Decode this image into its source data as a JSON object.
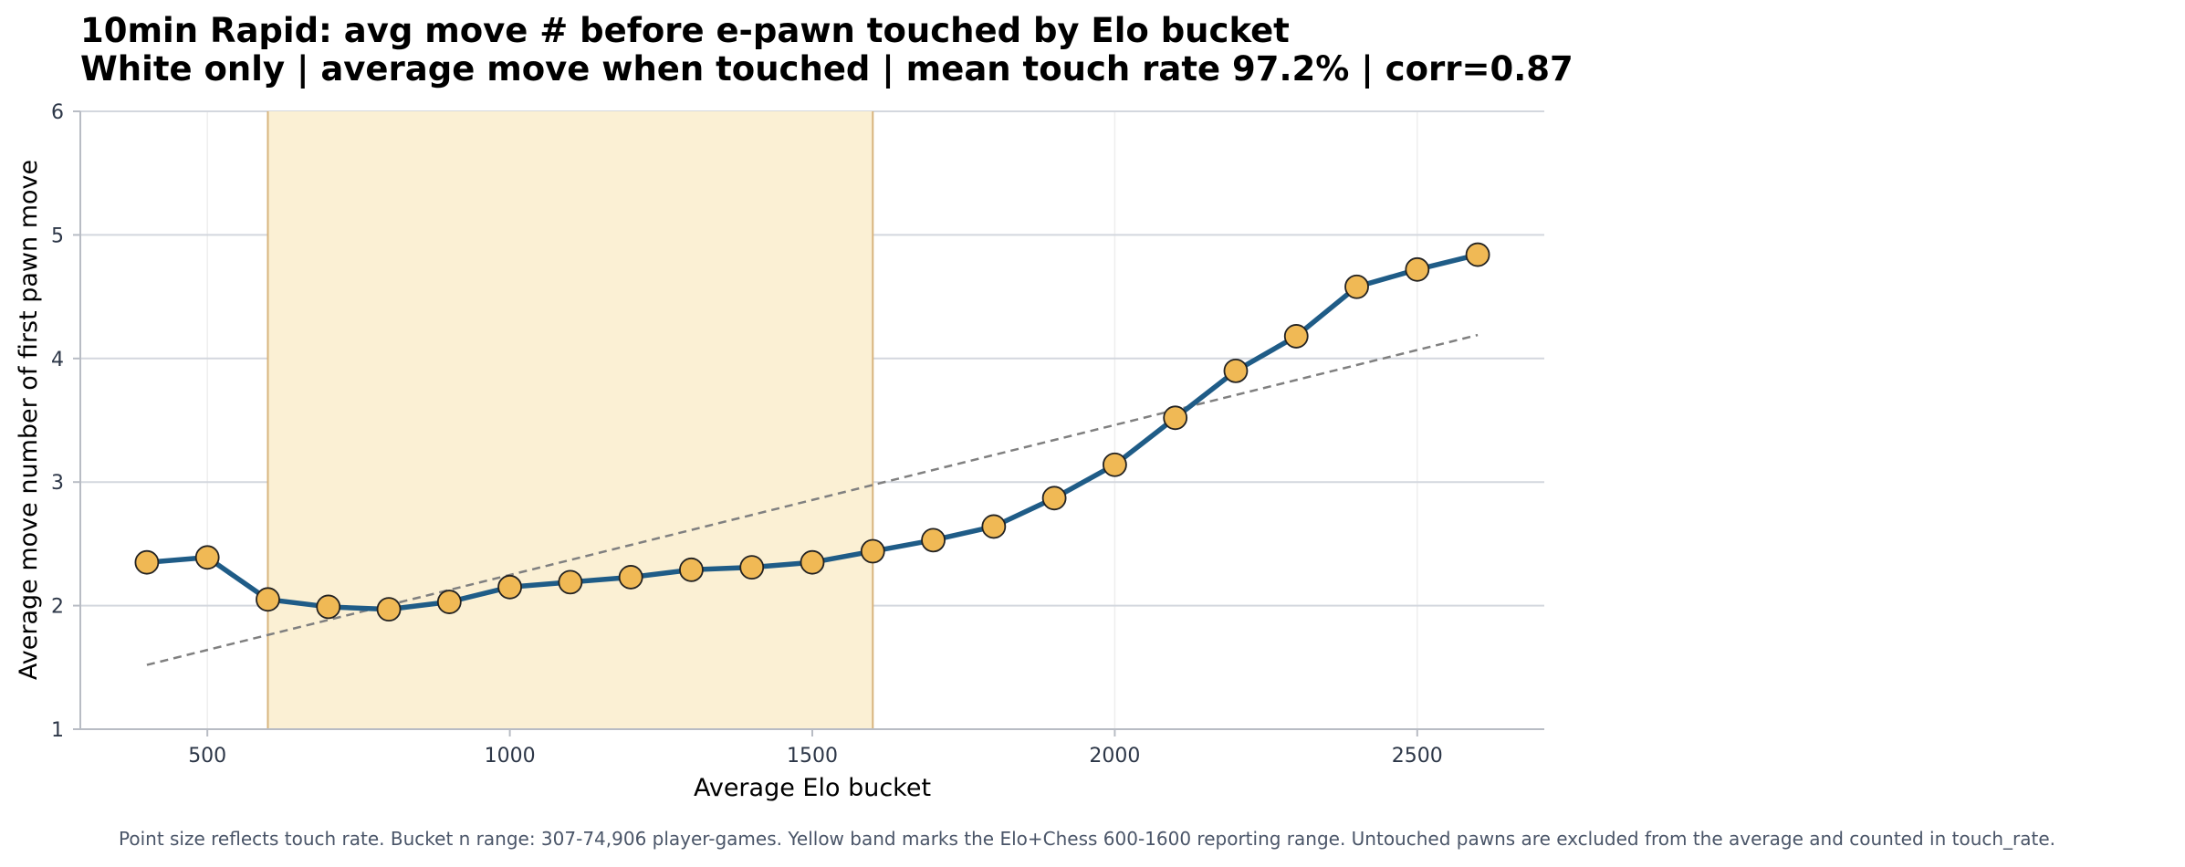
{
  "chart_data": {
    "type": "line",
    "title": "10min Rapid: avg move # before e-pawn touched by Elo bucket",
    "subtitle": "White only | average move when touched | mean touch rate 97.2% | corr=0.87",
    "xlabel": "Average Elo bucket",
    "ylabel": "Average move number of first pawn move",
    "xlim": [
      290,
      2710
    ],
    "ylim": [
      1,
      6
    ],
    "xticks": [
      500,
      1000,
      1500,
      2000,
      2500
    ],
    "yticks": [
      1,
      2,
      3,
      4,
      5,
      6
    ],
    "grid": true,
    "legend": "none",
    "highlight_band": {
      "x_start": 600,
      "x_end": 1600
    },
    "series": [
      {
        "x": [
          400,
          500,
          600,
          700,
          800,
          900,
          1000,
          1100,
          1200,
          1300,
          1400,
          1500,
          1600,
          1700,
          1800,
          1900,
          2000,
          2100,
          2200,
          2300,
          2400,
          2500,
          2600
        ],
        "values": [
          2.35,
          2.39,
          2.05,
          1.99,
          1.97,
          2.03,
          2.15,
          2.19,
          2.23,
          2.29,
          2.31,
          2.35,
          2.44,
          2.53,
          2.64,
          2.87,
          3.14,
          3.52,
          3.9,
          4.18,
          4.58,
          4.72,
          4.84
        ]
      }
    ],
    "trendline": {
      "x": [
        400,
        2600
      ],
      "y": [
        1.52,
        4.19
      ],
      "style": "dashed"
    },
    "caption": "Point size reflects touch rate. Bucket n range: 307-74,906 player-games. Yellow band marks the Elo+Chess 600-1600 reporting range. Untouched pawns are excluded from the average and counted in touch_rate."
  },
  "colors": {
    "line": "#1f5c87",
    "marker_fill": "#f0b955",
    "marker_edge": "#222222",
    "band_fill": "#fbf0d4",
    "band_edge": "#d8b47e",
    "trend": "#808080",
    "grid_h": "#d3d7de",
    "grid_v": "#eeeeee",
    "axis": "#b8bcc4"
  }
}
